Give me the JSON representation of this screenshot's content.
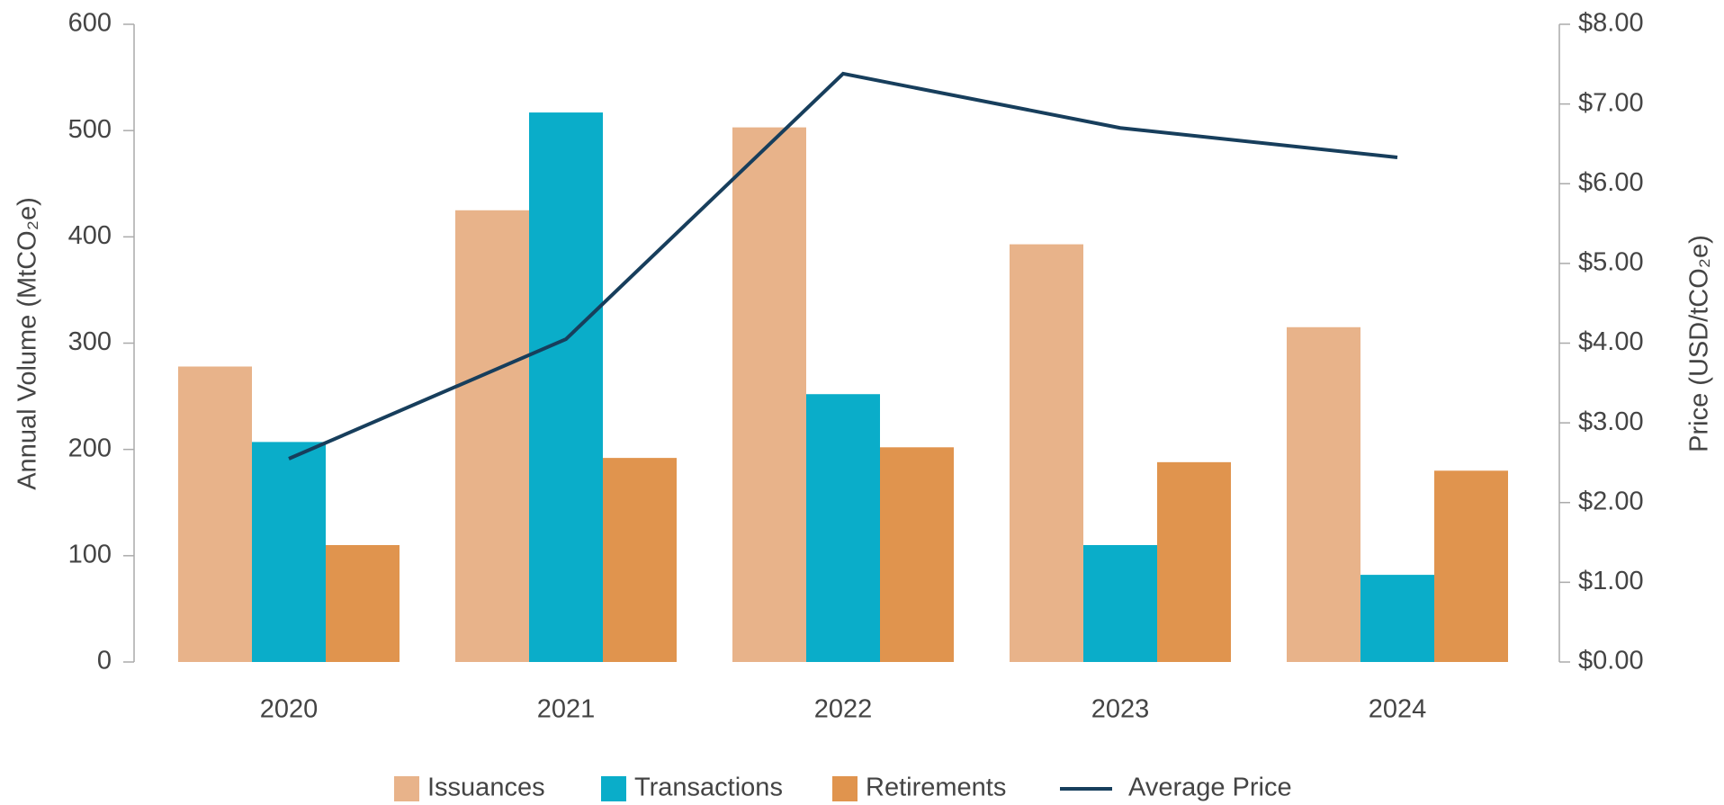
{
  "chart_data": {
    "type": "bar",
    "categories": [
      "2020",
      "2021",
      "2022",
      "2023",
      "2024"
    ],
    "series": [
      {
        "name": "Issuances",
        "color": "#e8b38a",
        "values": [
          278,
          425,
          503,
          393,
          315
        ]
      },
      {
        "name": "Transactions",
        "color": "#0aadc9",
        "values": [
          207,
          517,
          252,
          110,
          82
        ]
      },
      {
        "name": "Retirements",
        "color": "#e0944e",
        "values": [
          110,
          192,
          202,
          188,
          180
        ]
      },
      {
        "name": "Average Price",
        "type": "line",
        "axis": "y2",
        "color": "#173e5c",
        "values": [
          2.55,
          4.05,
          7.38,
          6.7,
          6.33
        ]
      }
    ],
    "ylabel": "Annual Volume (MtCO₂e)",
    "y2label": "Price (USD/tCO₂e)",
    "ylim": [
      0,
      600
    ],
    "yticks": [
      0,
      100,
      200,
      300,
      400,
      500,
      600
    ],
    "y2lim": [
      0,
      8
    ],
    "y2ticks": [
      {
        "value": 0,
        "label": "$0.00"
      },
      {
        "value": 1,
        "label": "$1.00"
      },
      {
        "value": 2,
        "label": "$2.00"
      },
      {
        "value": 3,
        "label": "$3.00"
      },
      {
        "value": 4,
        "label": "$4.00"
      },
      {
        "value": 5,
        "label": "$5.00"
      },
      {
        "value": 6,
        "label": "$6.00"
      },
      {
        "value": 7,
        "label": "$7.00"
      },
      {
        "value": 8,
        "label": "$8.00"
      }
    ],
    "legend": "bottom"
  }
}
